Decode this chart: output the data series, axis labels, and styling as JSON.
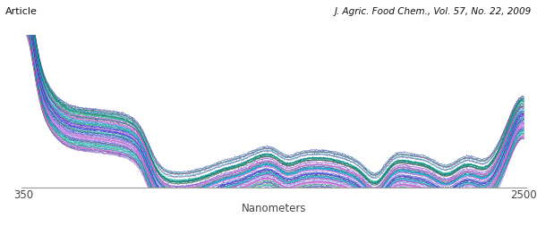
{
  "title_left": "Article",
  "title_right": "J. Agric. Food Chem., Vol. 57, No. 22, 2009",
  "xlabel": "Nanometers",
  "x_ticks": [
    350,
    2500
  ],
  "x_tick_labels": [
    "350",
    "2500"
  ],
  "x_range": [
    350,
    2500
  ],
  "n_lines": 60,
  "background_color": "#ffffff",
  "colors_teal": [
    "#008080",
    "#20b2aa",
    "#00ced1",
    "#009999",
    "#00a0a0",
    "#007b7b",
    "#00b5b5",
    "#00c5c5",
    "#006666",
    "#30d0c0"
  ],
  "colors_blue": [
    "#4169e1",
    "#1e90ff",
    "#0000cd",
    "#0047ab",
    "#4682b4",
    "#6495ed",
    "#1560bd",
    "#003399",
    "#336699",
    "#5577cc"
  ],
  "colors_purple": [
    "#6a5acd",
    "#9370db",
    "#7b68ee",
    "#8855cc",
    "#7744bb",
    "#9966cc",
    "#aa77dd",
    "#6633aa",
    "#8844bb",
    "#aa55cc"
  ],
  "colors_pink": [
    "#da70d6",
    "#ba55d3",
    "#cc66bb",
    "#dd77cc",
    "#ee88dd",
    "#c060c0",
    "#b050b0",
    "#cc77cc",
    "#aa55aa",
    "#bb66bb"
  ],
  "colors_green": [
    "#2e8b57",
    "#3cb371",
    "#228b22",
    "#006400",
    "#00704f",
    "#005540",
    "#007744",
    "#339966",
    "#227755",
    "#115544"
  ]
}
